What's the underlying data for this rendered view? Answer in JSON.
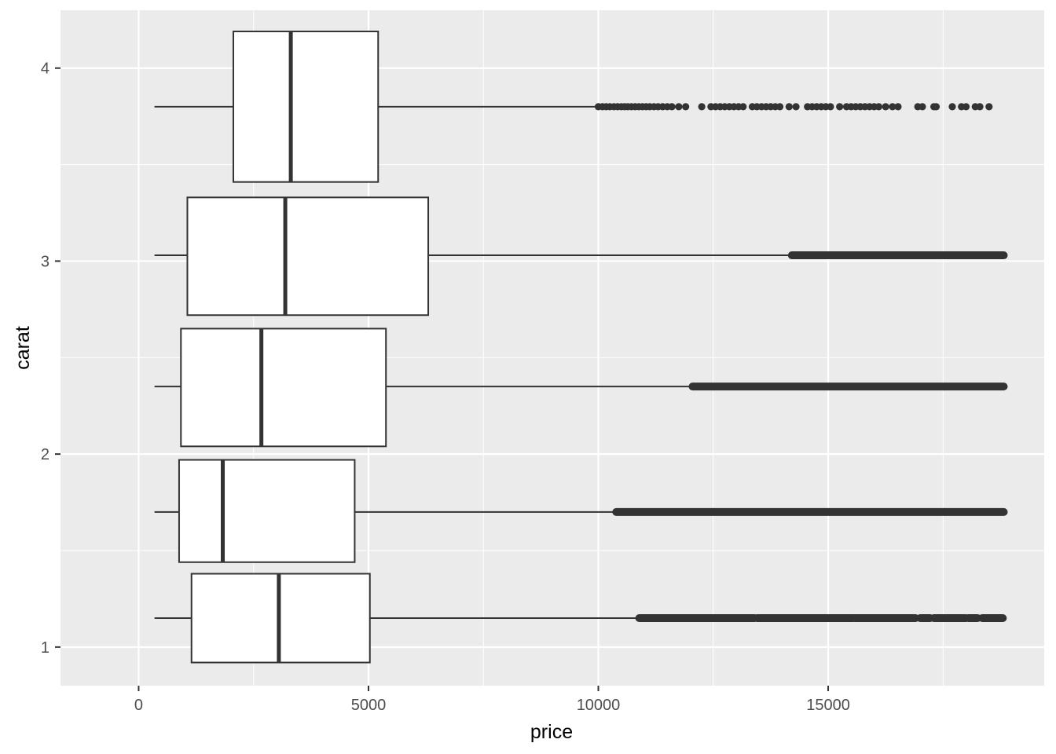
{
  "chart_data": {
    "type": "boxplot",
    "orientation": "horizontal",
    "title": "",
    "xlabel": "price",
    "ylabel": "carat",
    "xlim": [
      -1700,
      19700
    ],
    "ylim": [
      0.8,
      4.3
    ],
    "x_ticks": [
      0,
      5000,
      10000,
      15000
    ],
    "x_tick_labels": [
      "0",
      "5000",
      "10000",
      "15000"
    ],
    "y_ticks": [
      1,
      2,
      3,
      4
    ],
    "y_tick_labels": [
      "1",
      "2",
      "3",
      "4"
    ],
    "grid": true,
    "colors": {
      "panel_background": "#ebebeb",
      "grid": "#ffffff",
      "box_fill": "#ffffff",
      "box_line": "#333333",
      "outlier": "#333333"
    },
    "boxes": [
      {
        "y_center": 1.15,
        "y_min": 0.92,
        "y_max": 1.38,
        "whisker_low": 345,
        "q1": 1150,
        "median": 3050,
        "q3": 5030,
        "whisker_high": 10860,
        "outlier_ranges": [
          [
            10890,
            13400
          ],
          [
            13450,
            15550
          ],
          [
            15580,
            16900
          ],
          [
            17000,
            17220
          ],
          [
            17300,
            18000
          ],
          [
            18050,
            18250
          ],
          [
            18350,
            18800
          ]
        ]
      },
      {
        "y_center": 1.7,
        "y_min": 1.44,
        "y_max": 1.97,
        "whisker_low": 345,
        "q1": 880,
        "median": 1830,
        "q3": 4700,
        "whisker_high": 10360,
        "outlier_ranges": [
          [
            10390,
            18820
          ]
        ]
      },
      {
        "y_center": 2.35,
        "y_min": 2.04,
        "y_max": 2.65,
        "whisker_low": 345,
        "q1": 920,
        "median": 2670,
        "q3": 5380,
        "whisker_high": 12020,
        "outlier_ranges": [
          [
            12050,
            18820
          ]
        ]
      },
      {
        "y_center": 3.03,
        "y_min": 2.72,
        "y_max": 3.33,
        "whisker_low": 345,
        "q1": 1060,
        "median": 3190,
        "q3": 6300,
        "whisker_high": 14180,
        "outlier_ranges": [
          [
            14210,
            18820
          ]
        ]
      },
      {
        "y_center": 3.8,
        "y_min": 3.41,
        "y_max": 4.19,
        "whisker_low": 345,
        "q1": 2060,
        "median": 3310,
        "q3": 5210,
        "whisker_high": 9950,
        "outlier_points": [
          10000,
          10090,
          10170,
          10250,
          10340,
          10420,
          10500,
          10570,
          10640,
          10720,
          10800,
          10880,
          10960,
          11040,
          11120,
          11210,
          11300,
          11400,
          11500,
          11600,
          11750,
          11900,
          12250,
          12450,
          12550,
          12650,
          12750,
          12850,
          12950,
          13050,
          13150,
          13350,
          13450,
          13550,
          13650,
          13750,
          13850,
          13950,
          14150,
          14300,
          14550,
          14650,
          14750,
          14850,
          14950,
          15050,
          15250,
          15400,
          15500,
          15600,
          15700,
          15800,
          15900,
          16000,
          16100,
          16250,
          16400,
          16520,
          16950,
          17050,
          17300,
          17350,
          17700,
          17900,
          18000,
          18200,
          18300,
          18500
        ]
      }
    ]
  }
}
